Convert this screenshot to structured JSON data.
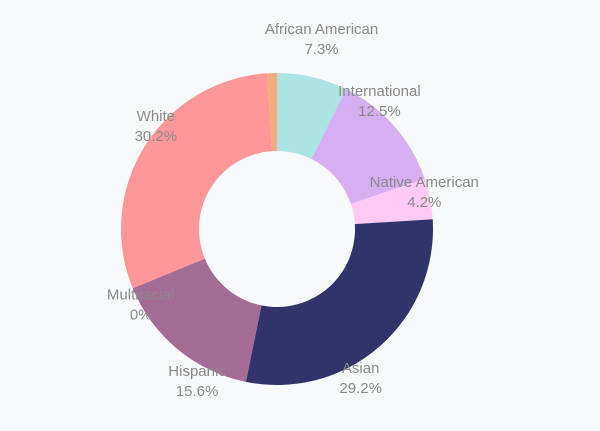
{
  "chart_data": {
    "type": "pie",
    "donut": true,
    "slices": [
      {
        "label": "African American",
        "value": 7.3,
        "display": "7.3%",
        "color": "#ace3e3"
      },
      {
        "label": "International",
        "value": 12.5,
        "display": "12.5%",
        "color": "#d8aef2"
      },
      {
        "label": "Native American",
        "value": 4.2,
        "display": "4.2%",
        "color": "#fdcaf6"
      },
      {
        "label": "Asian",
        "value": 29.2,
        "display": "29.2%",
        "color": "#31346b"
      },
      {
        "label": "Hispanic",
        "value": 15.6,
        "display": "15.6%",
        "color": "#a46b94"
      },
      {
        "label": "Multiracial",
        "value": 0,
        "display": "0%",
        "color": "#b0b0b0"
      },
      {
        "label": "White",
        "value": 30.2,
        "display": "30.2%",
        "color": "#fd979a"
      },
      {
        "label": "",
        "value": 1.0,
        "display": "",
        "color": "#f7ab7d"
      }
    ]
  }
}
